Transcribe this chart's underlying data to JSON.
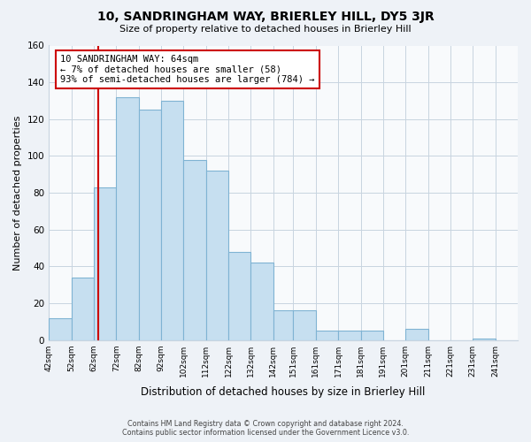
{
  "title": "10, SANDRINGHAM WAY, BRIERLEY HILL, DY5 3JR",
  "subtitle": "Size of property relative to detached houses in Brierley Hill",
  "xlabel": "Distribution of detached houses by size in Brierley Hill",
  "ylabel": "Number of detached properties",
  "bar_edges": [
    42,
    52,
    62,
    72,
    82,
    92,
    102,
    112,
    122,
    132,
    142,
    151,
    161,
    171,
    181,
    191,
    201,
    211,
    221,
    231,
    241,
    251
  ],
  "bar_heights": [
    12,
    34,
    83,
    132,
    125,
    130,
    98,
    92,
    48,
    42,
    16,
    16,
    5,
    5,
    5,
    0,
    6,
    0,
    0,
    1,
    0
  ],
  "bar_color": "#c6dff0",
  "bar_edge_color": "#7fb3d3",
  "vline_x": 64,
  "vline_color": "#cc0000",
  "annotation_text": "10 SANDRINGHAM WAY: 64sqm\n← 7% of detached houses are smaller (58)\n93% of semi-detached houses are larger (784) →",
  "annotation_box_color": "white",
  "annotation_box_edge_color": "#cc0000",
  "ylim": [
    0,
    160
  ],
  "yticks": [
    0,
    20,
    40,
    60,
    80,
    100,
    120,
    140,
    160
  ],
  "tick_labels": [
    "42sqm",
    "52sqm",
    "62sqm",
    "72sqm",
    "82sqm",
    "92sqm",
    "102sqm",
    "112sqm",
    "122sqm",
    "132sqm",
    "142sqm",
    "151sqm",
    "161sqm",
    "171sqm",
    "181sqm",
    "191sqm",
    "201sqm",
    "211sqm",
    "221sqm",
    "231sqm",
    "241sqm"
  ],
  "background_color": "#eef2f7",
  "plot_bg_color": "#f8fafc",
  "grid_color": "#c8d4e0"
}
